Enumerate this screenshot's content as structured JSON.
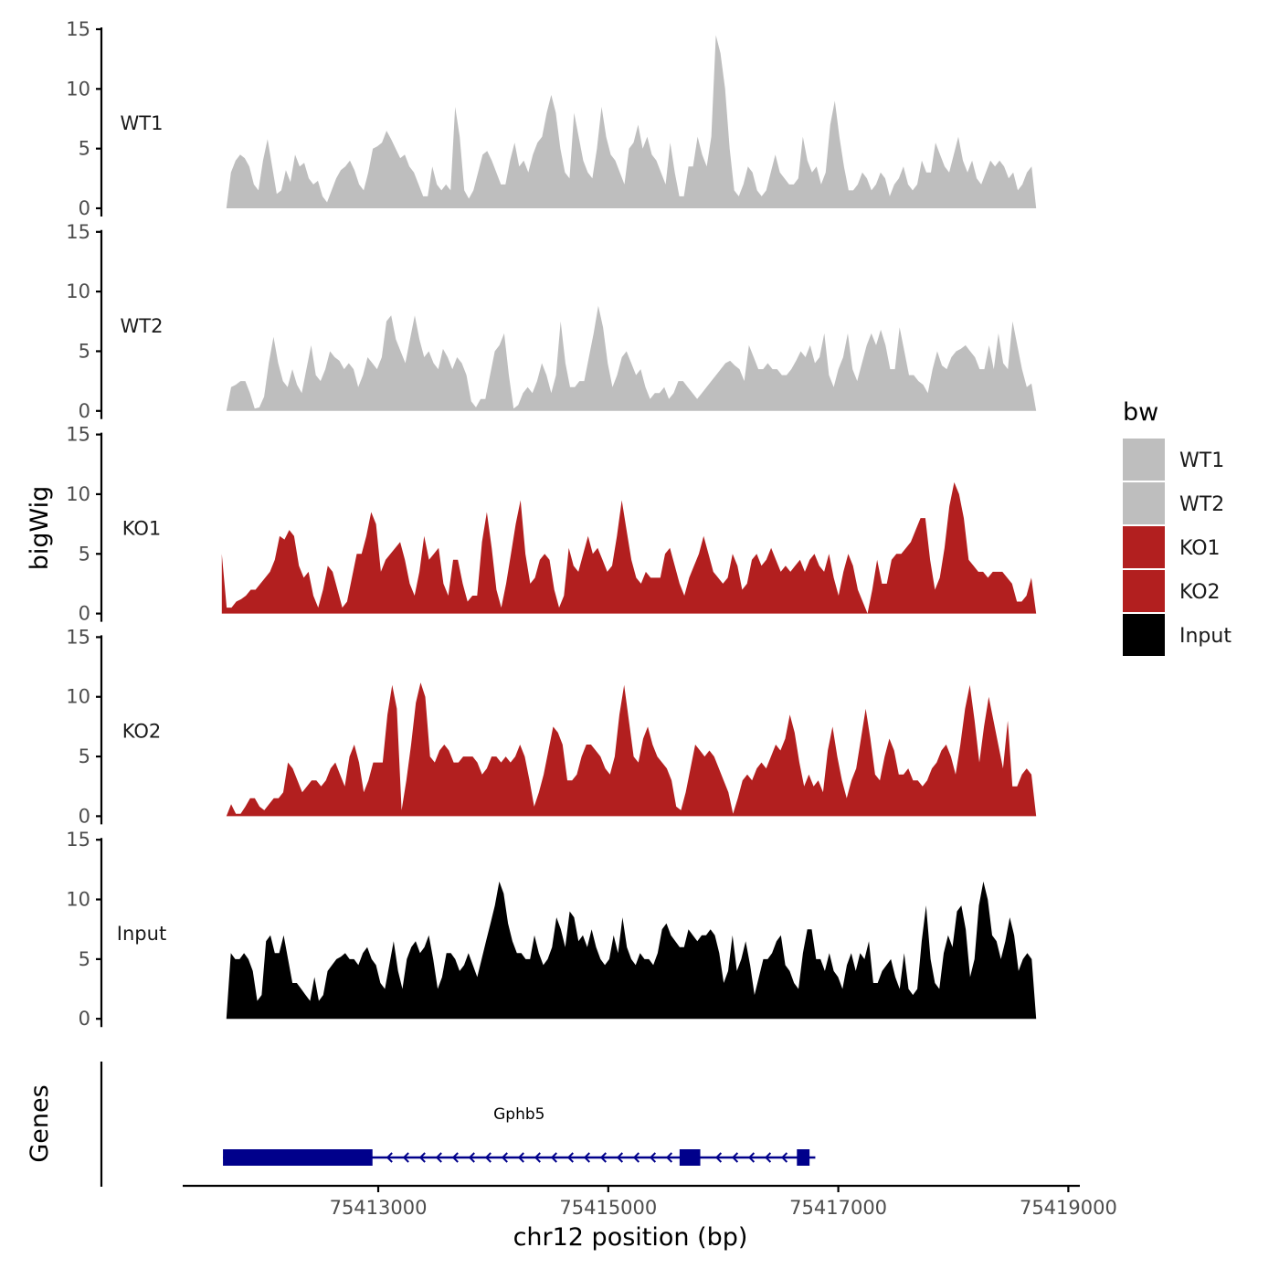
{
  "chart_data": {
    "type": "area",
    "x_label": "chr12 position (bp)",
    "y_label": "bigWig",
    "gene_track_label": "Genes",
    "xlim": [
      75411300,
      75419100
    ],
    "x_ticks": [
      75413000,
      75415000,
      75417000,
      75419000
    ],
    "x_tick_labels": [
      "75413000",
      "75415000",
      "75417000",
      "75419000"
    ],
    "ylim": [
      0,
      15
    ],
    "y_ticks": [
      0,
      5,
      10,
      15
    ],
    "y_tick_labels": [
      "0",
      "5",
      "10",
      "15"
    ],
    "legend": {
      "title": "bw",
      "entries": [
        {
          "label": "WT1",
          "color": "#bebebe"
        },
        {
          "label": "WT2",
          "color": "#bebebe"
        },
        {
          "label": "KO1",
          "color": "#b21f1f"
        },
        {
          "label": "KO2",
          "color": "#b21f1f"
        },
        {
          "label": "Input",
          "color": "#000000"
        }
      ]
    },
    "series": [
      {
        "name": "WT1",
        "color": "#bebebe",
        "x_start": 75411680,
        "x_end": 75418720,
        "values": [
          0,
          3,
          4,
          4.5,
          4.2,
          3.5,
          2,
          1.5,
          4,
          5.8,
          3.5,
          1.2,
          1.5,
          3.2,
          2.2,
          4.5,
          3.5,
          3.8,
          2.5,
          2,
          2.3,
          1,
          0.5,
          1.5,
          2.5,
          3.2,
          3.5,
          4,
          3.2,
          2,
          1.5,
          3,
          5,
          5.2,
          5.5,
          6.5,
          5.8,
          5,
          4.2,
          4.5,
          3.5,
          3,
          2,
          1,
          1,
          3.5,
          2,
          1.5,
          2,
          1.5,
          8.5,
          6,
          1.5,
          0.8,
          1.5,
          3,
          4.5,
          4.8,
          4,
          3,
          2,
          2,
          4,
          5.5,
          3.5,
          4,
          3,
          4.5,
          5.5,
          6,
          8,
          9.5,
          8,
          5,
          3,
          2.5,
          8,
          6,
          4,
          3,
          2.5,
          5,
          8.5,
          6,
          4.5,
          4,
          3,
          2,
          5,
          5.5,
          7,
          5,
          6,
          4.5,
          4,
          3,
          2,
          5.5,
          3,
          1,
          1,
          3.5,
          3.5,
          6,
          4.5,
          3.5,
          6,
          14.5,
          13,
          10,
          5,
          1.5,
          1,
          2,
          3.5,
          3,
          1.5,
          1,
          1.5,
          3,
          4.5,
          3,
          2.5,
          2,
          2,
          2.5,
          6,
          4,
          3,
          3.5,
          2,
          3,
          7,
          9,
          6,
          3.5,
          1.5,
          1.5,
          2,
          3,
          2.5,
          1.5,
          2,
          3,
          2.5,
          1,
          2,
          2.5,
          3.5,
          2,
          1.5,
          2,
          4,
          3,
          3,
          5.5,
          4.5,
          3.5,
          3,
          4.5,
          6,
          4,
          3,
          4,
          2.5,
          2,
          3,
          4,
          3.5,
          4,
          3.5,
          2.5,
          3,
          1.5,
          2,
          3,
          3.5,
          0
        ]
      },
      {
        "name": "WT2",
        "color": "#bebebe",
        "x_start": 75411680,
        "x_end": 75418720,
        "values": [
          0,
          2,
          2.2,
          2.5,
          2.5,
          1.5,
          0.2,
          0.3,
          1.2,
          4,
          6.2,
          4,
          2.5,
          2,
          3.5,
          2.2,
          1.5,
          3.5,
          5.5,
          3,
          2.5,
          3.5,
          5,
          4.5,
          4.2,
          3.5,
          4,
          3.5,
          2,
          3,
          4.5,
          4,
          3.5,
          4.5,
          7.5,
          8,
          6,
          5,
          4,
          6,
          8,
          6,
          4.5,
          5,
          4,
          3.5,
          5.2,
          4.5,
          3.5,
          4.5,
          4,
          3,
          0.8,
          0.3,
          1,
          1,
          3,
          5,
          5.5,
          6.5,
          3,
          0.2,
          0.5,
          1.5,
          2,
          1.5,
          2.5,
          4,
          3,
          1.5,
          3,
          7.5,
          4,
          2,
          2,
          2.5,
          2.5,
          4.5,
          6.5,
          8.8,
          7,
          4,
          2,
          3,
          4.5,
          5,
          4,
          3,
          3.5,
          2,
          1,
          1.5,
          1.5,
          2,
          1,
          1.5,
          2.5,
          2.5,
          2,
          1.5,
          1,
          1.5,
          2,
          2.5,
          3,
          3.5,
          4,
          4.2,
          3.8,
          3.5,
          2.5,
          5.5,
          4.5,
          3.5,
          3.5,
          4,
          3.5,
          3.5,
          3,
          3,
          3.5,
          4.2,
          5,
          4.5,
          5.5,
          4,
          4.5,
          6.5,
          3,
          2,
          3.5,
          4.5,
          6.5,
          3.5,
          2.5,
          4,
          5.5,
          6.5,
          5.5,
          6.8,
          5.5,
          3.5,
          3.5,
          7,
          5,
          3,
          3,
          2.5,
          2.2,
          1.5,
          3.5,
          5,
          3.8,
          3.5,
          4.5,
          5,
          5.2,
          5.5,
          5,
          4.5,
          3.5,
          3.5,
          5.5,
          3.5,
          6.5,
          4,
          3.5,
          7.5,
          5.5,
          3.5,
          2,
          2.3,
          0
        ]
      },
      {
        "name": "KO1",
        "color": "#b21f1f",
        "x_start": 75411640,
        "x_end": 75418720,
        "values": [
          5,
          0.5,
          0.5,
          1,
          1.2,
          1.5,
          2,
          2,
          2.5,
          3,
          3.5,
          4.5,
          6.5,
          6.2,
          7,
          6.5,
          4,
          3,
          3.5,
          1.5,
          0.5,
          2,
          4,
          3.5,
          2,
          0.5,
          1,
          3,
          5,
          5,
          6.5,
          8.5,
          7.5,
          3.5,
          4.5,
          5,
          5.5,
          6,
          4.5,
          2.5,
          1.5,
          3.5,
          6.5,
          4.5,
          5,
          5.5,
          2.5,
          1.5,
          4.5,
          4.5,
          2.5,
          1,
          1.5,
          1.5,
          6,
          8.5,
          5.5,
          2,
          0.5,
          2.5,
          5,
          7.5,
          9.5,
          5,
          2.5,
          3,
          4.5,
          5,
          4.5,
          2,
          0.5,
          1.5,
          5.5,
          4,
          3.5,
          5,
          6.5,
          5,
          5.5,
          4.5,
          3.5,
          4,
          6.5,
          9.5,
          7,
          4.5,
          3,
          2.5,
          3.5,
          3,
          3,
          3,
          5,
          5.5,
          4,
          2.5,
          1.5,
          3,
          4,
          5,
          6.5,
          5,
          3.5,
          3,
          2.5,
          3,
          5,
          4,
          2,
          2.5,
          4.5,
          5,
          4,
          4.5,
          5.5,
          4.5,
          3.5,
          4,
          3.5,
          4,
          4.5,
          3.5,
          4.5,
          5,
          4,
          3.5,
          5,
          3,
          1.5,
          3.5,
          5,
          4,
          2,
          1,
          0,
          2,
          4.5,
          2.5,
          2.5,
          4.5,
          5,
          5,
          5.5,
          6,
          7,
          8,
          8,
          4.5,
          2,
          3,
          5.5,
          9,
          11,
          10,
          8,
          4.5,
          4,
          3.5,
          3.5,
          3,
          3.5,
          3.5,
          3.5,
          3,
          2.5,
          1,
          1,
          1.5,
          3,
          0
        ]
      },
      {
        "name": "KO2",
        "color": "#b21f1f",
        "x_start": 75411680,
        "x_end": 75418720,
        "values": [
          0,
          1,
          0.2,
          0.2,
          0.8,
          1.5,
          1.5,
          0.8,
          0.5,
          1,
          1.5,
          1.5,
          2,
          4.5,
          4,
          3,
          2,
          2.5,
          3,
          3,
          2.5,
          3,
          4,
          4.5,
          3.5,
          2.5,
          5,
          6,
          4.5,
          2,
          3,
          4.5,
          4.5,
          4.5,
          8.5,
          11,
          9,
          0.5,
          3,
          6,
          9.5,
          11.2,
          10,
          5,
          4.5,
          5.5,
          6,
          5.5,
          4.5,
          4.5,
          5,
          5,
          5,
          4.5,
          3.5,
          4,
          5,
          5,
          4.5,
          5,
          4.5,
          5,
          6,
          5,
          3,
          0.8,
          2,
          3.5,
          5.5,
          7.5,
          7,
          6,
          3,
          3,
          3.5,
          5,
          6,
          6,
          5.5,
          5,
          4,
          3.5,
          5,
          8.5,
          11,
          8,
          5,
          4.5,
          6.5,
          7.5,
          6,
          5,
          4.5,
          4,
          3,
          0.8,
          0.5,
          2,
          4,
          6,
          5.5,
          5,
          5.5,
          5,
          4,
          3,
          2,
          0.2,
          1.5,
          3,
          3.5,
          3,
          4,
          4.5,
          4,
          5,
          6,
          5.5,
          6.5,
          8.5,
          7,
          4.5,
          2.5,
          3.5,
          2.5,
          3,
          2,
          5.5,
          7.5,
          5,
          3,
          1.5,
          3,
          4,
          6.5,
          9,
          6.5,
          3.5,
          3,
          5,
          6.5,
          5.5,
          3.5,
          3.5,
          4,
          3,
          3,
          2.5,
          3,
          4,
          4.5,
          5.5,
          6,
          5,
          3.5,
          6,
          9,
          11,
          8,
          4.5,
          7.5,
          10,
          8,
          6,
          4,
          8,
          2.5,
          2.5,
          3.5,
          4,
          3.5,
          0
        ]
      },
      {
        "name": "Input",
        "color": "#000000",
        "x_start": 75411680,
        "x_end": 75418720,
        "values": [
          0,
          5.5,
          5,
          5,
          5.5,
          5,
          4,
          1.5,
          2,
          6.5,
          7,
          5.5,
          5.5,
          7,
          5,
          3,
          3,
          2.5,
          2,
          1.5,
          3.5,
          1.5,
          2,
          4,
          4.5,
          5,
          5.2,
          5.5,
          5,
          5,
          4.5,
          5.5,
          6,
          5,
          4.5,
          3,
          2.5,
          4.5,
          6.5,
          4,
          2.5,
          5,
          6,
          6.5,
          5.5,
          6,
          7,
          5,
          2.5,
          3.5,
          5.5,
          5.5,
          5,
          4,
          4.5,
          5.5,
          4.5,
          3.5,
          5,
          6.5,
          8,
          9.5,
          11.5,
          10.5,
          8,
          6.5,
          5.5,
          5.5,
          5,
          5,
          7,
          5.5,
          4.5,
          5,
          6,
          8.5,
          7.5,
          6,
          9,
          8.5,
          6.5,
          7,
          6,
          7.5,
          6,
          5,
          4.5,
          5,
          7,
          5.5,
          8.5,
          6,
          5,
          4.5,
          5.5,
          5,
          5,
          4.5,
          5.5,
          7.5,
          8,
          7,
          6.5,
          6,
          6,
          7.5,
          7,
          6.5,
          7,
          7,
          7.5,
          7,
          5.5,
          3,
          4,
          7,
          4,
          5,
          6.5,
          4.5,
          2,
          3.5,
          5,
          5,
          5.5,
          6.5,
          7,
          4.5,
          4,
          3,
          2.5,
          5.5,
          7.5,
          7.5,
          5,
          5,
          4,
          5.5,
          4,
          3.5,
          2.5,
          4.5,
          5.5,
          4,
          5.5,
          5,
          6.5,
          3,
          3,
          4,
          4.5,
          5,
          3.5,
          2.5,
          5.5,
          2.5,
          2,
          2.5,
          6.5,
          9.5,
          5,
          3,
          2.5,
          5.5,
          7,
          6,
          9,
          9.5,
          7.5,
          3.5,
          5,
          9.5,
          11.5,
          10,
          7,
          6.5,
          5,
          6.5,
          8.5,
          7,
          4,
          5,
          5.5,
          5,
          0
        ]
      }
    ],
    "gene": {
      "name": "Gphb5",
      "strand": "-",
      "start": 75411650,
      "end": 75416800,
      "exons": [
        [
          75411650,
          75412950
        ],
        [
          75415620,
          75415800
        ],
        [
          75416640,
          75416750
        ]
      ]
    }
  }
}
